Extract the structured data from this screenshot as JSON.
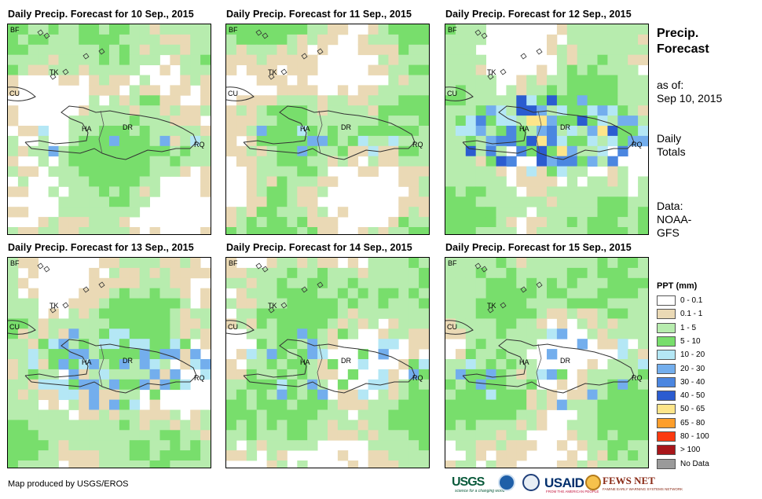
{
  "panels": [
    {
      "title": "Daily Precip. Forecast for 10 Sep., 2015"
    },
    {
      "title": "Daily Precip. Forecast for 11 Sep., 2015"
    },
    {
      "title": "Daily Precip. Forecast for 12 Sep., 2015"
    },
    {
      "title": "Daily Precip. Forecast for 13 Sep., 2015"
    },
    {
      "title": "Daily Precip. Forecast for 14 Sep., 2015"
    },
    {
      "title": "Daily Precip. Forecast for 15 Sep., 2015"
    }
  ],
  "map_labels": {
    "bf": "BF",
    "tk": "TK",
    "cu": "CU",
    "ha": "HA",
    "dr": "DR",
    "rq": "RQ"
  },
  "sidebar": {
    "title_line1": "Precip.",
    "title_line2": "Forecast",
    "asof_line1": "as of:",
    "asof_line2": "Sep 10, 2015",
    "daily_line1": "Daily",
    "daily_line2": "Totals",
    "data_line1": "Data:",
    "data_line2": "NOAA-",
    "data_line3": "GFS"
  },
  "legend": {
    "title": "PPT (mm)",
    "items": [
      {
        "label": "0 - 0.1",
        "color": "#ffffff"
      },
      {
        "label": "0.1 - 1",
        "color": "#ead9b5"
      },
      {
        "label": "1 - 5",
        "color": "#b7ecae"
      },
      {
        "label": "5 - 10",
        "color": "#78de6c"
      },
      {
        "label": "10 - 20",
        "color": "#b4e7f5"
      },
      {
        "label": "20 - 30",
        "color": "#73aeed"
      },
      {
        "label": "30 - 40",
        "color": "#4b86e0"
      },
      {
        "label": "40 - 50",
        "color": "#2b5cd0"
      },
      {
        "label": "50 - 65",
        "color": "#fde58a"
      },
      {
        "label": "65 - 80",
        "color": "#fd9e2b"
      },
      {
        "label": "80 - 100",
        "color": "#fb3a10"
      },
      {
        "label": "> 100",
        "color": "#a8161a"
      },
      {
        "label": "No Data",
        "color": "#9a9a9a"
      }
    ]
  },
  "footer": {
    "credit": "Map produced by USGS/EROS",
    "usgs": "USGS",
    "usgs_tagline": "science for a changing world",
    "usaid": "USAID",
    "usaid_tagline": "FROM THE AMERICAN PEOPLE",
    "fews": "FEWS NET",
    "fews_tagline": "FAMINE EARLY WARNING SYSTEMS NETWORK"
  }
}
